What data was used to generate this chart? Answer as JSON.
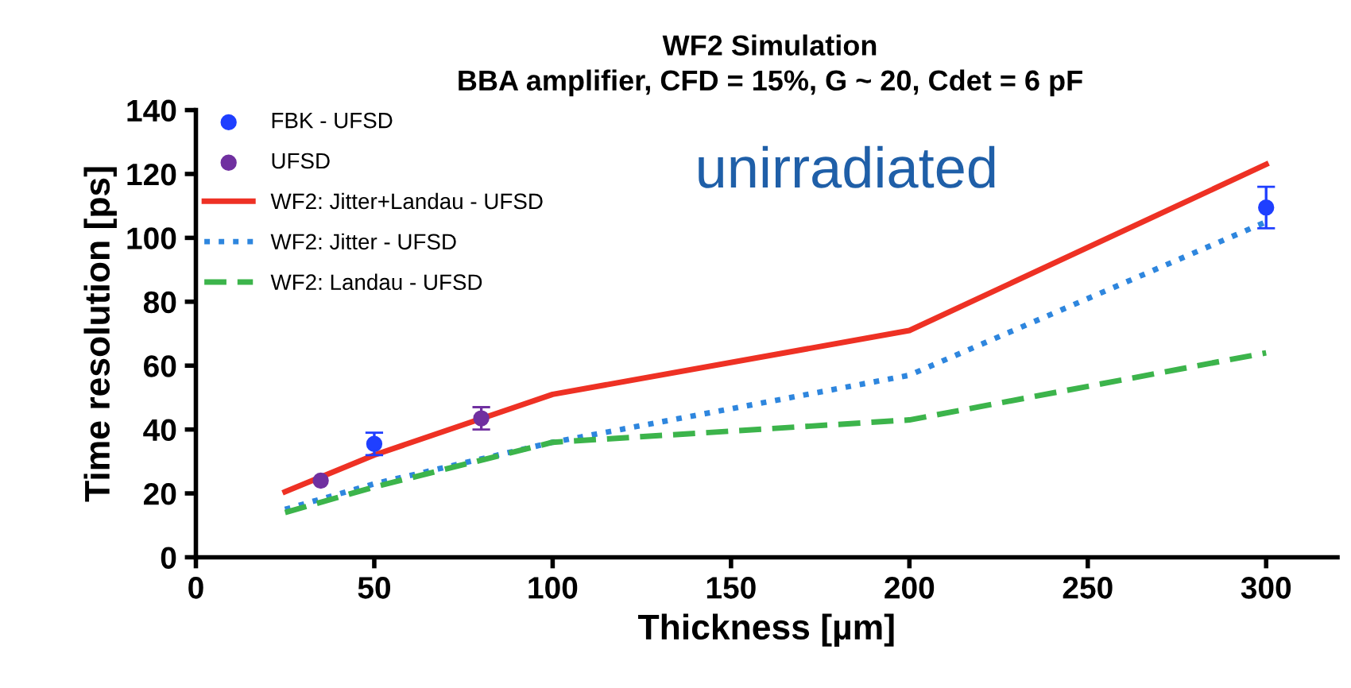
{
  "chart_data": {
    "type": "line",
    "title": "WF2 Simulation\nBBA amplifier, CFD = 15%, G ~ 20, Cdet = 6 pF",
    "xlabel": "Thickness [µm]",
    "ylabel": "Time resolution [ps]",
    "xlim": [
      0,
      320
    ],
    "xticks": [
      0,
      50,
      100,
      150,
      200,
      250,
      300
    ],
    "ylim": [
      0,
      140
    ],
    "yticks": [
      0,
      20,
      40,
      60,
      80,
      100,
      120,
      140
    ],
    "grid": false,
    "legend": "top left",
    "annotations": [
      "unirradiated"
    ],
    "series": [
      {
        "name": "FBK - UFSD",
        "type": "scatter",
        "color": "#1f3fff",
        "marker": "circle",
        "x": [
          50,
          300
        ],
        "values": [
          35.5,
          109.5
        ],
        "errors": [
          3.5,
          [
            103,
            116
          ]
        ]
      },
      {
        "name": "UFSD",
        "type": "scatter",
        "color": "#7030a0",
        "marker": "circle",
        "x": [
          35,
          80
        ],
        "values": [
          24,
          43.5
        ],
        "errors": [
          null,
          3.5
        ]
      },
      {
        "name": "WF2: Jitter+Landau - UFSD",
        "color": "#ee3124",
        "line_style": "solid",
        "x": [
          25,
          50,
          100,
          200,
          300
        ],
        "values": [
          20.5,
          32,
          51,
          71,
          123
        ]
      },
      {
        "name": "WF2: Jitter - UFSD",
        "color": "#2e86de",
        "line_style": "dotted",
        "x": [
          25,
          50,
          100,
          200,
          300
        ],
        "values": [
          15,
          23,
          36,
          57,
          105
        ]
      },
      {
        "name": "WF2: Landau - UFSD",
        "color": "#3cb44b",
        "line_style": "dashed",
        "x": [
          25,
          50,
          100,
          200,
          300
        ],
        "values": [
          14,
          22,
          36,
          43,
          64
        ]
      }
    ]
  }
}
